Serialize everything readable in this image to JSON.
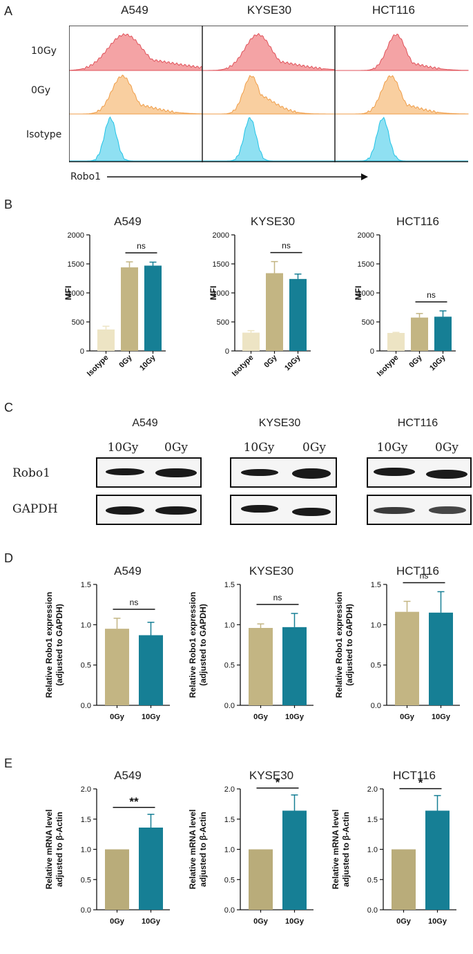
{
  "panels": {
    "A": "A",
    "B": "B",
    "C": "C",
    "D": "D",
    "E": "E"
  },
  "cell_lines": [
    "A549",
    "KYSE30",
    "HCT116"
  ],
  "panel_a": {
    "row_labels": [
      "10Gy",
      "0Gy",
      "Isotype"
    ],
    "axis_label": "Robo1",
    "colors": {
      "10Gy": "#f4a3a5",
      "0Gy": "#f9cfa0",
      "Isotype": "#8fe0f2"
    }
  },
  "panel_c": {
    "lane_labels": [
      "10Gy",
      "0Gy"
    ],
    "row_labels": [
      "Robo1",
      "GAPDH"
    ]
  },
  "chart_data": [
    {
      "panel": "B",
      "type": "bar",
      "title": "A549",
      "ylabel": "MFI",
      "categories": [
        "Isotype",
        "0Gy",
        "10Gy"
      ],
      "values": [
        370,
        1440,
        1470
      ],
      "errors": [
        55,
        95,
        60
      ],
      "ylim": [
        0,
        2000
      ],
      "yticks": [
        "0",
        "500",
        "1000",
        "1500",
        "2000"
      ],
      "sig": {
        "label": "ns",
        "between": [
          1,
          2
        ]
      }
    },
    {
      "panel": "B",
      "type": "bar",
      "title": "KYSE30",
      "ylabel": "MFI",
      "categories": [
        "Isotype",
        "0Gy",
        "10Gy"
      ],
      "values": [
        315,
        1340,
        1240
      ],
      "errors": [
        35,
        200,
        85
      ],
      "ylim": [
        0,
        2000
      ],
      "yticks": [
        "0",
        "500",
        "1000",
        "1500",
        "2000"
      ],
      "sig": {
        "label": "ns",
        "between": [
          1,
          2
        ]
      }
    },
    {
      "panel": "B",
      "type": "bar",
      "title": "HCT116",
      "ylabel": "MFI",
      "categories": [
        "Isotype",
        "0Gy",
        "10Gy"
      ],
      "values": [
        310,
        575,
        590
      ],
      "errors": [
        10,
        70,
        100
      ],
      "ylim": [
        0,
        2000
      ],
      "yticks": [
        "0",
        "500",
        "1000",
        "1500",
        "2000"
      ],
      "sig": {
        "label": "ns",
        "between": [
          1,
          2
        ]
      }
    },
    {
      "panel": "D",
      "type": "bar",
      "title": "A549",
      "ylabel": "Relative Robo1 expression\n(adjusted to GAPDH)",
      "categories": [
        "0Gy",
        "10Gy"
      ],
      "values": [
        0.95,
        0.87
      ],
      "errors": [
        0.13,
        0.16
      ],
      "ylim": [
        0,
        1.5
      ],
      "yticks": [
        "0.0",
        "0.5",
        "1.0",
        "1.5"
      ],
      "sig": {
        "label": "ns",
        "between": [
          0,
          1
        ]
      }
    },
    {
      "panel": "D",
      "type": "bar",
      "title": "KYSE30",
      "ylabel": "Relative Robo1 expression\n(adjusted to GAPDH)",
      "categories": [
        "0Gy",
        "10Gy"
      ],
      "values": [
        0.96,
        0.97
      ],
      "errors": [
        0.05,
        0.17
      ],
      "ylim": [
        0,
        1.5
      ],
      "yticks": [
        "0.0",
        "0.5",
        "1.0",
        "1.5"
      ],
      "sig": {
        "label": "ns",
        "between": [
          0,
          1
        ]
      }
    },
    {
      "panel": "D",
      "type": "bar",
      "title": "HCT116",
      "ylabel": "Relative Robo1 expression\n(adjusted to GAPDH)",
      "categories": [
        "0Gy",
        "10Gy"
      ],
      "values": [
        1.16,
        1.15
      ],
      "errors": [
        0.13,
        0.26
      ],
      "ylim": [
        0,
        1.5
      ],
      "yticks": [
        "0.0",
        "0.5",
        "1.0",
        "1.5"
      ],
      "sig": {
        "label": "ns",
        "between": [
          0,
          1
        ]
      }
    },
    {
      "panel": "E",
      "type": "bar",
      "title": "A549",
      "ylabel": "Relative mRNA level\nadjusted to β-Actin",
      "categories": [
        "0Gy",
        "10Gy"
      ],
      "values": [
        1.0,
        1.36
      ],
      "errors": [
        0.0,
        0.22
      ],
      "ylim": [
        0,
        2.0
      ],
      "yticks": [
        "0.0",
        "0.5",
        "1.0",
        "1.5",
        "2.0"
      ],
      "sig": {
        "label": "**",
        "between": [
          0,
          1
        ]
      }
    },
    {
      "panel": "E",
      "type": "bar",
      "title": "KYSE30",
      "ylabel": "Relative mRNA level\nadjusted to β-Actin",
      "categories": [
        "0Gy",
        "10Gy"
      ],
      "values": [
        1.0,
        1.64
      ],
      "errors": [
        0.0,
        0.26
      ],
      "ylim": [
        0,
        2.0
      ],
      "yticks": [
        "0.0",
        "0.5",
        "1.0",
        "1.5",
        "2.0"
      ],
      "sig": {
        "label": "*",
        "between": [
          0,
          1
        ]
      }
    },
    {
      "panel": "E",
      "type": "bar",
      "title": "HCT116",
      "ylabel": "Relative mRNA level\nadjusted to β-Actin",
      "categories": [
        "0Gy",
        "10Gy"
      ],
      "values": [
        1.0,
        1.64
      ],
      "errors": [
        0.0,
        0.25
      ],
      "ylim": [
        0,
        2.0
      ],
      "yticks": [
        "0.0",
        "0.5",
        "1.0",
        "1.5",
        "2.0"
      ],
      "sig": {
        "label": "*",
        "between": [
          0,
          1
        ]
      }
    }
  ],
  "colors": {
    "isotype": "#ede4c4",
    "gy0": "#c3b583",
    "gy10": "#167f95",
    "gy0_e": "#b9ac7a"
  }
}
